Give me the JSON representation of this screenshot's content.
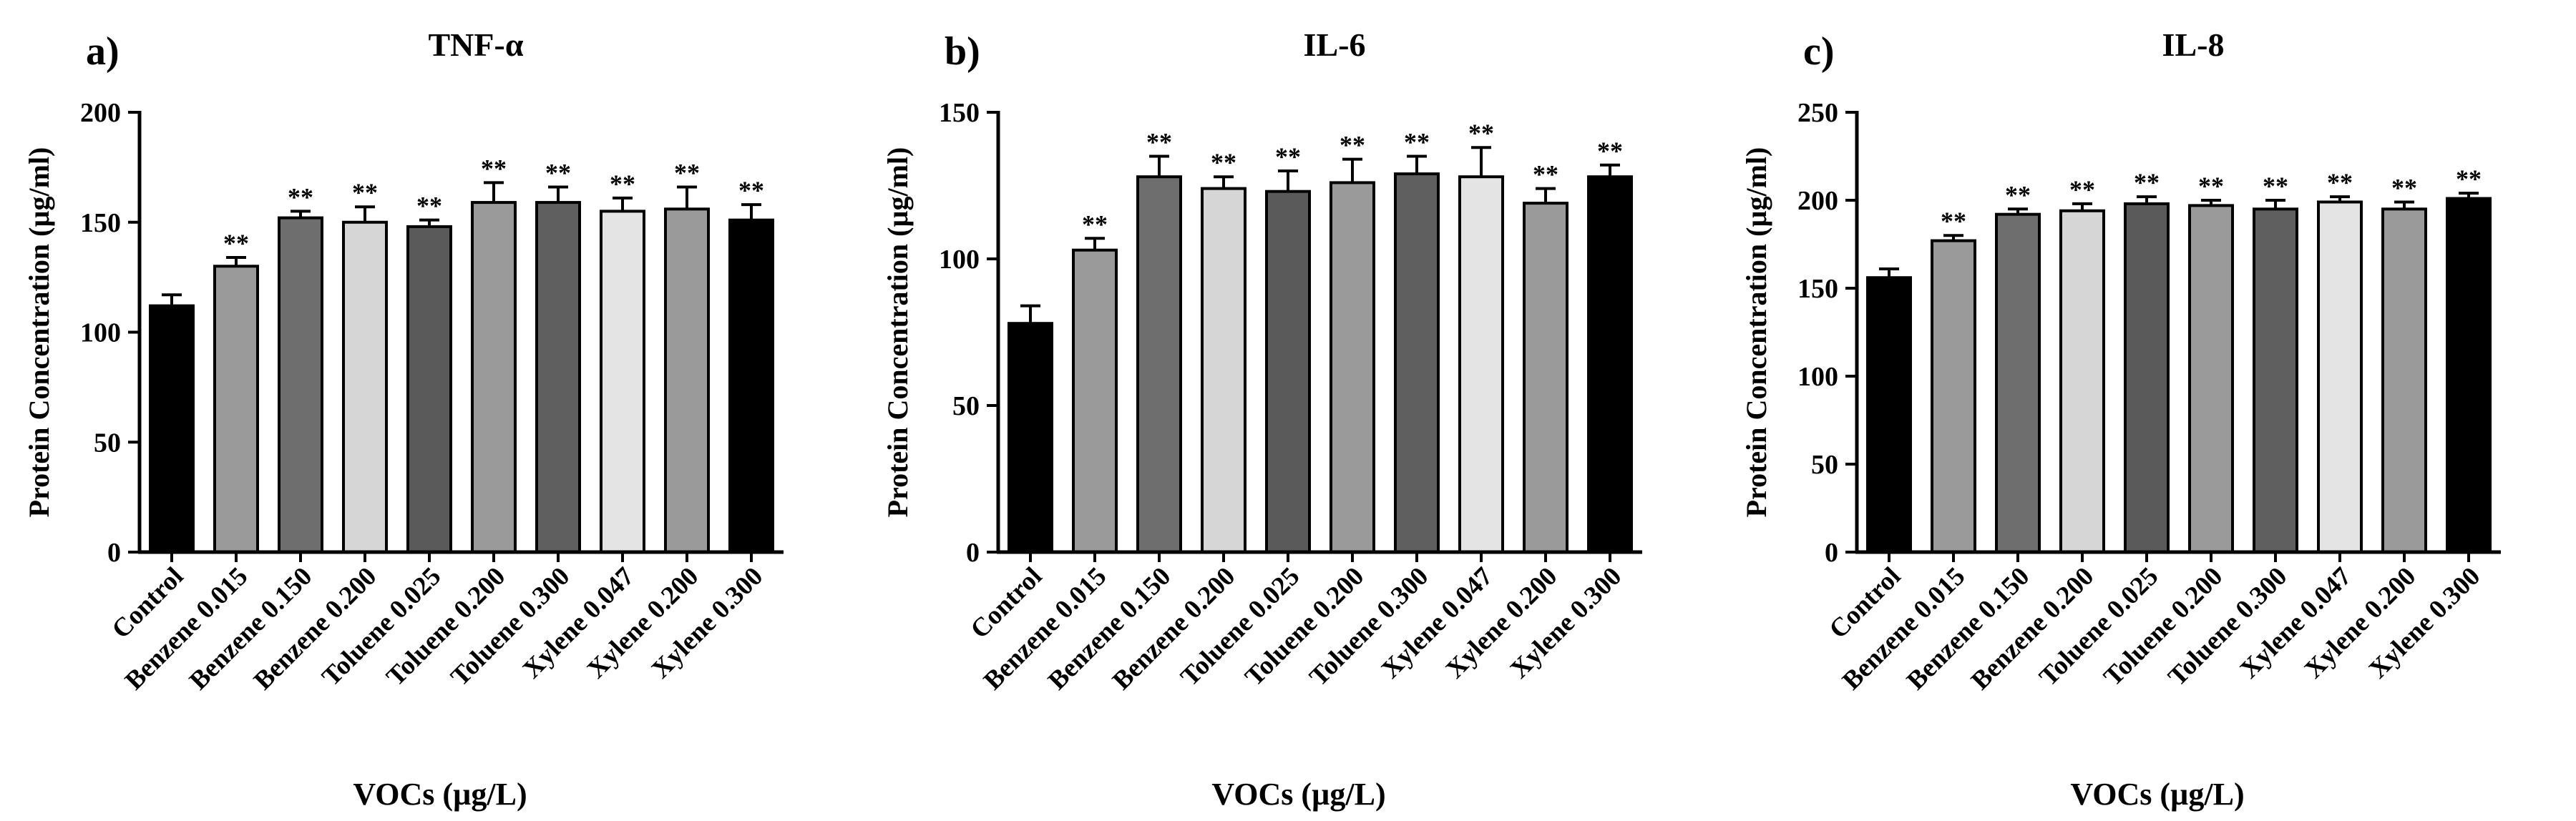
{
  "figure": {
    "x_axis_label": "VOCs (µg/L)",
    "y_axis_label": "Protein Concentration (µg/ml)",
    "significance_marker": "**"
  },
  "colors": {
    "control": "#000000",
    "benzene_0_015": "#9a9a9a",
    "benzene_0_150": "#6e6e6e",
    "benzene_0_200": "#d6d6d6",
    "toluene_0_025": "#5a5a5a",
    "toluene_0_200": "#9a9a9a",
    "toluene_0_300": "#5f5f5f",
    "xylene_0_047": "#e4e4e4",
    "xylene_0_200": "#9a9a9a",
    "xylene_0_300": "#000000"
  },
  "chart_data": [
    {
      "type": "bar",
      "panel_label": "a)",
      "title": "TNF-α",
      "xlabel": "VOCs (µg/L)",
      "ylabel": "Protein Concentration (µg/ml)",
      "ylim": [
        0,
        200
      ],
      "yticks": [
        0,
        50,
        100,
        150,
        200
      ],
      "categories": [
        "Control",
        "Benzene 0.015",
        "Benzene 0.150",
        "Benzene 0.200",
        "Toluene 0.025",
        "Toluene 0.200",
        "Toluene 0.300",
        "Xylene 0.047",
        "Xylene 0.200",
        "Xylene 0.300"
      ],
      "values": [
        112,
        130,
        152,
        150,
        148,
        159,
        159,
        155,
        156,
        151
      ],
      "errors": [
        5,
        4,
        3,
        7,
        3,
        9,
        7,
        6,
        10,
        7
      ],
      "significance": [
        "",
        "**",
        "**",
        "**",
        "**",
        "**",
        "**",
        "**",
        "**",
        "**"
      ]
    },
    {
      "type": "bar",
      "panel_label": "b)",
      "title": "IL-6",
      "xlabel": "VOCs (µg/L)",
      "ylabel": "Protein Concentration (µg/ml)",
      "ylim": [
        0,
        150
      ],
      "yticks": [
        0,
        50,
        100,
        150
      ],
      "categories": [
        "Control",
        "Benzene 0.015",
        "Benzene 0.150",
        "Benzene 0.200",
        "Toluene 0.025",
        "Toluene 0.200",
        "Toluene 0.300",
        "Xylene 0.047",
        "Xylene 0.200",
        "Xylene 0.300"
      ],
      "values": [
        78,
        103,
        128,
        124,
        123,
        126,
        129,
        128,
        119,
        128
      ],
      "errors": [
        6,
        4,
        7,
        4,
        7,
        8,
        6,
        10,
        5,
        4
      ],
      "significance": [
        "",
        "**",
        "**",
        "**",
        "**",
        "**",
        "**",
        "**",
        "**",
        "**"
      ]
    },
    {
      "type": "bar",
      "panel_label": "c)",
      "title": "IL-8",
      "xlabel": "VOCs (µg/L)",
      "ylabel": "Protein Concentration (µg/ml)",
      "ylim": [
        0,
        250
      ],
      "yticks": [
        0,
        50,
        100,
        150,
        200,
        250
      ],
      "categories": [
        "Control",
        "Benzene 0.015",
        "Benzene 0.150",
        "Benzene 0.200",
        "Toluene 0.025",
        "Toluene 0.200",
        "Toluene 0.300",
        "Xylene 0.047",
        "Xylene 0.200",
        "Xylene 0.300"
      ],
      "values": [
        156,
        177,
        192,
        194,
        198,
        197,
        195,
        199,
        195,
        201
      ],
      "errors": [
        5,
        3,
        3,
        4,
        4,
        3,
        5,
        3,
        4,
        3
      ],
      "significance": [
        "",
        "**",
        "**",
        "**",
        "**",
        "**",
        "**",
        "**",
        "**",
        "**"
      ]
    }
  ]
}
